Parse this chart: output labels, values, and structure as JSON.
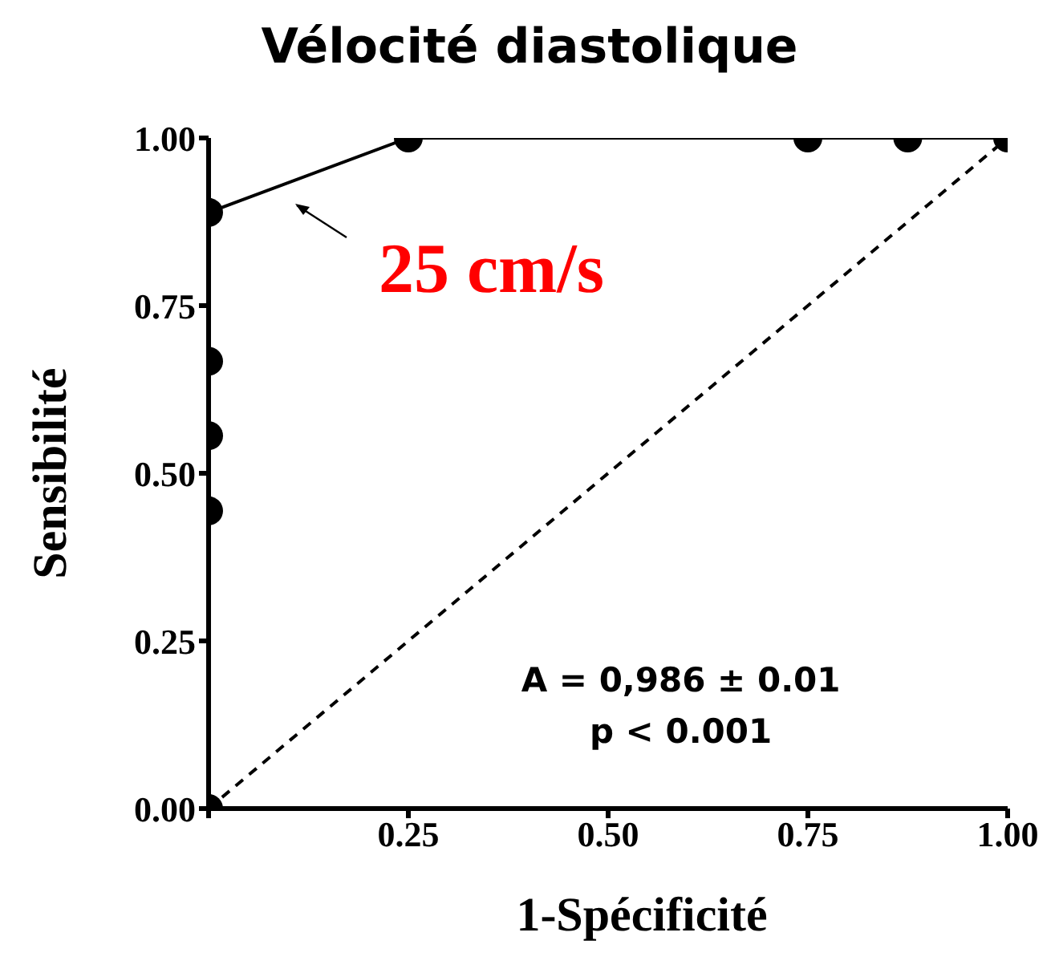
{
  "chart_data": {
    "type": "line",
    "title": "Vélocité diastolique",
    "xlabel": "1-Spécificité",
    "ylabel": "Sensibilité",
    "xlim": [
      0,
      1
    ],
    "ylim": [
      0,
      1
    ],
    "xticks": [
      {
        "value": 0,
        "label": null
      },
      {
        "value": 0.25,
        "label": "0.25"
      },
      {
        "value": 0.5,
        "label": "0.50"
      },
      {
        "value": 0.75,
        "label": "0.75"
      },
      {
        "value": 1,
        "label": "1.00"
      }
    ],
    "yticks": [
      {
        "value": 0,
        "label": "0.00"
      },
      {
        "value": 0.25,
        "label": "0.25"
      },
      {
        "value": 0.5,
        "label": "0.50"
      },
      {
        "value": 0.75,
        "label": "0.75"
      },
      {
        "value": 1,
        "label": "1.00"
      }
    ],
    "grid": false,
    "legend": false,
    "series": [
      {
        "color": "#000000",
        "marker": "circle",
        "line_style": "solid",
        "x": [
          0,
          0,
          0,
          0,
          0,
          0.25,
          0.75,
          0.875,
          1
        ],
        "values": [
          0,
          0.444,
          0.556,
          0.667,
          0.889,
          1,
          1,
          1,
          1
        ]
      },
      {
        "color": "#000000",
        "marker": "none",
        "line_style": "dashed",
        "x": [
          0,
          1
        ],
        "values": [
          0,
          1
        ]
      }
    ],
    "annotations": [
      {
        "text": "25 cm/s",
        "x": 0,
        "y": 0.889
      },
      "A = 0,986 ± 0.01",
      "p < 0.001"
    ]
  }
}
